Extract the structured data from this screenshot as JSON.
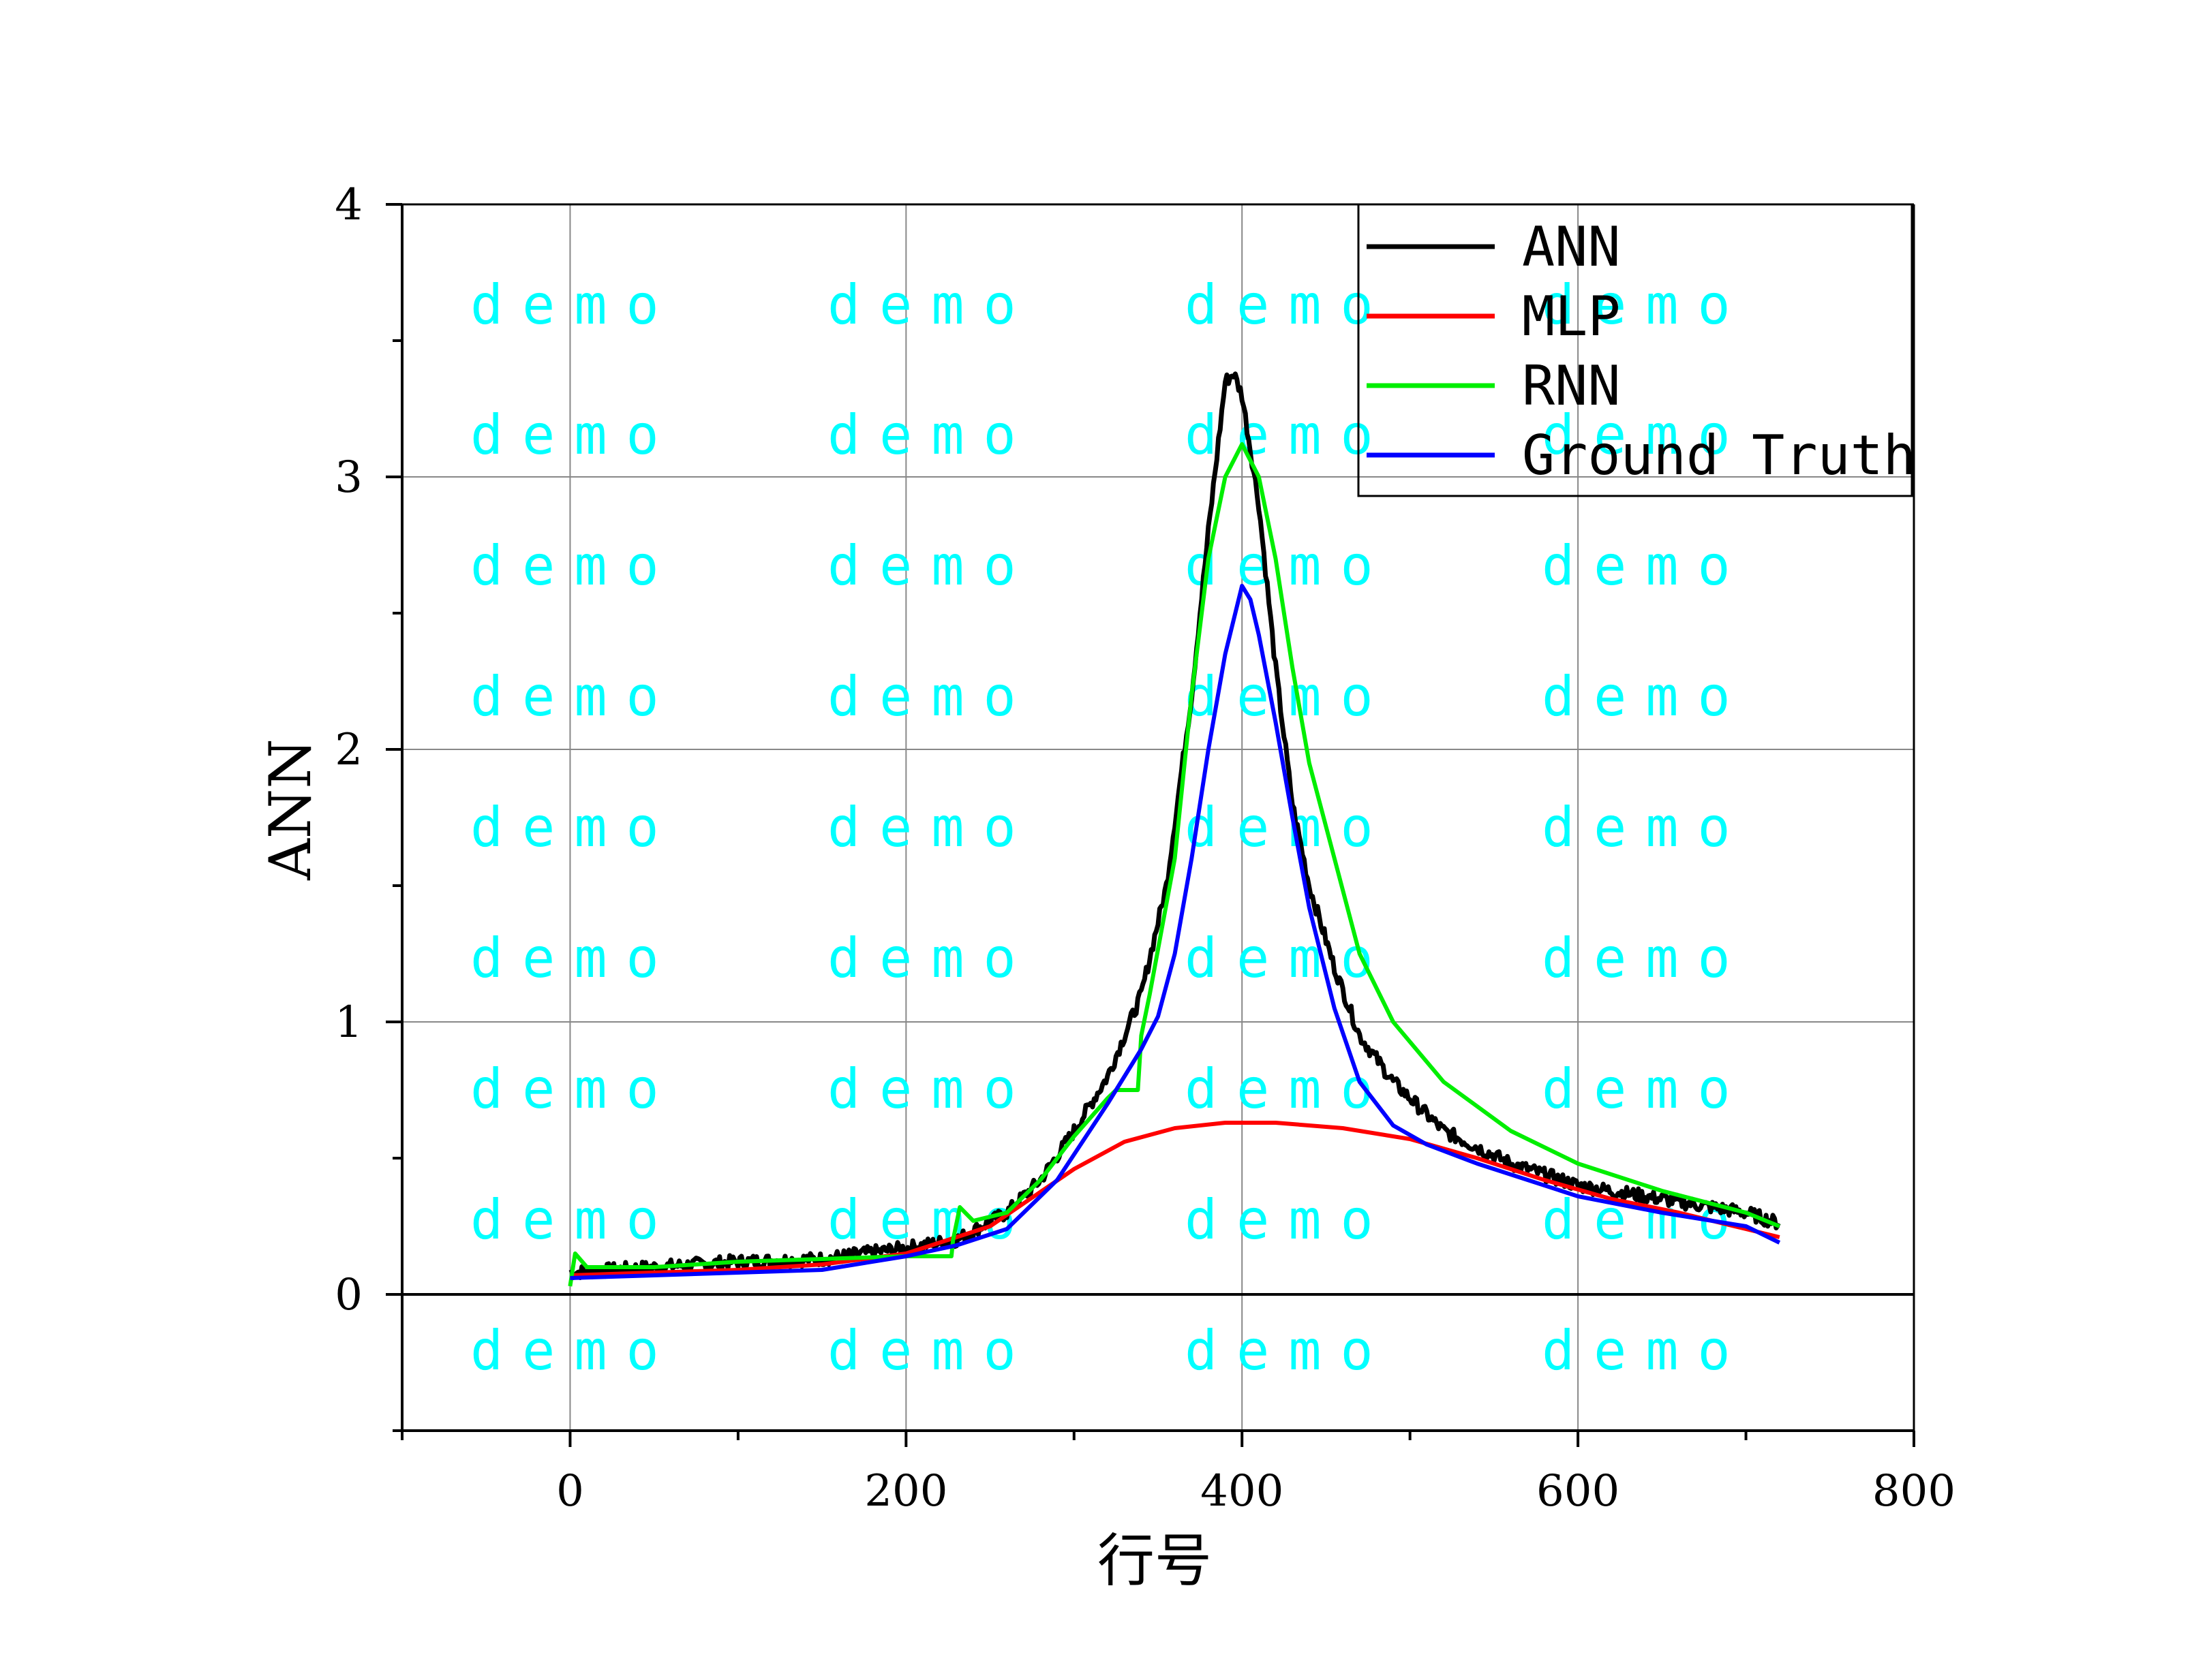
{
  "chart_data": {
    "type": "line",
    "xlabel": "行号",
    "ylabel": "ANN",
    "xlim": [
      -100,
      800
    ],
    "ylim": [
      -0.5,
      4
    ],
    "x_major_ticks": [
      0,
      200,
      400,
      600,
      800
    ],
    "x_tick_labels": [
      "0",
      "200",
      "400",
      "600",
      "800"
    ],
    "y_major_ticks": [
      0,
      1,
      2,
      3,
      4
    ],
    "y_tick_labels": [
      "0",
      "1",
      "2",
      "3",
      "4"
    ],
    "x_minor_ticks": [
      -100,
      100,
      300,
      500,
      700
    ],
    "y_minor_ticks": [
      -0.5,
      0.5,
      1.5,
      2.5,
      3.5
    ],
    "grid": true,
    "legend_position": "top-right",
    "watermark_text": "demo",
    "series": [
      {
        "name": "ANN",
        "color": "#000000",
        "noisy": true,
        "points": [
          [
            0,
            0.08
          ],
          [
            50,
            0.1
          ],
          [
            100,
            0.12
          ],
          [
            150,
            0.13
          ],
          [
            200,
            0.17
          ],
          [
            230,
            0.2
          ],
          [
            260,
            0.3
          ],
          [
            280,
            0.42
          ],
          [
            300,
            0.6
          ],
          [
            320,
            0.8
          ],
          [
            340,
            1.1
          ],
          [
            355,
            1.5
          ],
          [
            370,
            2.2
          ],
          [
            380,
            2.8
          ],
          [
            390,
            3.35
          ],
          [
            395,
            3.38
          ],
          [
            400,
            3.3
          ],
          [
            410,
            2.9
          ],
          [
            420,
            2.3
          ],
          [
            430,
            1.8
          ],
          [
            440,
            1.5
          ],
          [
            455,
            1.2
          ],
          [
            470,
            0.95
          ],
          [
            490,
            0.78
          ],
          [
            520,
            0.6
          ],
          [
            560,
            0.48
          ],
          [
            600,
            0.4
          ],
          [
            650,
            0.35
          ],
          [
            700,
            0.3
          ],
          [
            720,
            0.26
          ]
        ]
      },
      {
        "name": "MLP",
        "color": "#ff0000",
        "points": [
          [
            0,
            0.07
          ],
          [
            50,
            0.08
          ],
          [
            100,
            0.09
          ],
          [
            150,
            0.11
          ],
          [
            200,
            0.15
          ],
          [
            250,
            0.25
          ],
          [
            300,
            0.46
          ],
          [
            330,
            0.56
          ],
          [
            360,
            0.61
          ],
          [
            390,
            0.63
          ],
          [
            420,
            0.63
          ],
          [
            460,
            0.61
          ],
          [
            500,
            0.57
          ],
          [
            540,
            0.5
          ],
          [
            580,
            0.42
          ],
          [
            620,
            0.35
          ],
          [
            660,
            0.3
          ],
          [
            700,
            0.24
          ],
          [
            720,
            0.21
          ]
        ]
      },
      {
        "name": "RNN",
        "color": "#00ee00",
        "points": [
          [
            0,
            0.03
          ],
          [
            3,
            0.15
          ],
          [
            10,
            0.1
          ],
          [
            50,
            0.1
          ],
          [
            100,
            0.12
          ],
          [
            150,
            0.13
          ],
          [
            200,
            0.14
          ],
          [
            227,
            0.14
          ],
          [
            228,
            0.2
          ],
          [
            232,
            0.32
          ],
          [
            240,
            0.27
          ],
          [
            260,
            0.3
          ],
          [
            280,
            0.42
          ],
          [
            300,
            0.58
          ],
          [
            320,
            0.72
          ],
          [
            325,
            0.75
          ],
          [
            338,
            0.75
          ],
          [
            340,
            0.95
          ],
          [
            345,
            1.1
          ],
          [
            360,
            1.6
          ],
          [
            370,
            2.2
          ],
          [
            380,
            2.7
          ],
          [
            390,
            3.0
          ],
          [
            400,
            3.12
          ],
          [
            410,
            3.0
          ],
          [
            420,
            2.7
          ],
          [
            430,
            2.3
          ],
          [
            440,
            1.95
          ],
          [
            455,
            1.6
          ],
          [
            470,
            1.25
          ],
          [
            490,
            1.0
          ],
          [
            520,
            0.78
          ],
          [
            560,
            0.6
          ],
          [
            600,
            0.48
          ],
          [
            650,
            0.38
          ],
          [
            700,
            0.3
          ],
          [
            720,
            0.25
          ]
        ]
      },
      {
        "name": "Ground Truth",
        "color": "#0000ff",
        "points": [
          [
            0,
            0.06
          ],
          [
            50,
            0.07
          ],
          [
            100,
            0.08
          ],
          [
            150,
            0.09
          ],
          [
            200,
            0.14
          ],
          [
            230,
            0.18
          ],
          [
            260,
            0.24
          ],
          [
            290,
            0.42
          ],
          [
            320,
            0.7
          ],
          [
            340,
            0.9
          ],
          [
            350,
            1.02
          ],
          [
            360,
            1.25
          ],
          [
            370,
            1.6
          ],
          [
            380,
            2.0
          ],
          [
            390,
            2.35
          ],
          [
            400,
            2.6
          ],
          [
            405,
            2.55
          ],
          [
            410,
            2.42
          ],
          [
            420,
            2.1
          ],
          [
            430,
            1.75
          ],
          [
            440,
            1.42
          ],
          [
            455,
            1.05
          ],
          [
            470,
            0.78
          ],
          [
            490,
            0.62
          ],
          [
            510,
            0.55
          ],
          [
            540,
            0.48
          ],
          [
            570,
            0.42
          ],
          [
            600,
            0.36
          ],
          [
            650,
            0.3
          ],
          [
            700,
            0.25
          ],
          [
            720,
            0.19
          ]
        ]
      }
    ]
  }
}
